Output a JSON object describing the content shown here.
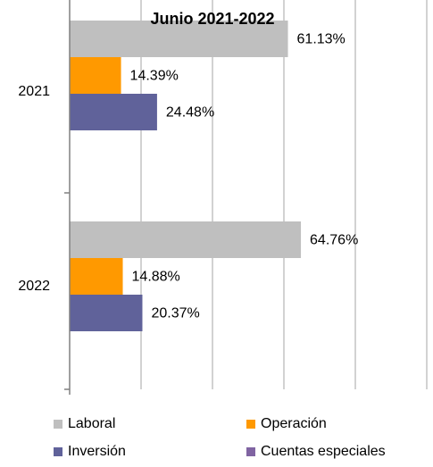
{
  "chart_data": {
    "type": "bar",
    "orientation": "horizontal",
    "title": "Junio 2021-2022",
    "categories": [
      "2021",
      "2022"
    ],
    "series": [
      {
        "name": "Laboral",
        "color": "#bfbfbf",
        "values": [
          61.13,
          64.76
        ],
        "labels": [
          "61.13%",
          "64.76%"
        ]
      },
      {
        "name": "Operación",
        "color": "#ff9900",
        "values": [
          14.39,
          14.88
        ],
        "labels": [
          "14.39%",
          "14.88%"
        ]
      },
      {
        "name": "Inversión",
        "color": "#60629a",
        "values": [
          24.48,
          20.37
        ],
        "labels": [
          "24.48%",
          "20.37%"
        ]
      },
      {
        "name": "Cuentas especiales",
        "color": "#8064a2",
        "values": [
          0,
          0
        ],
        "labels": [
          "",
          ""
        ]
      }
    ],
    "xlim": [
      0,
      100
    ],
    "grid": true,
    "legend_position": "bottom"
  }
}
